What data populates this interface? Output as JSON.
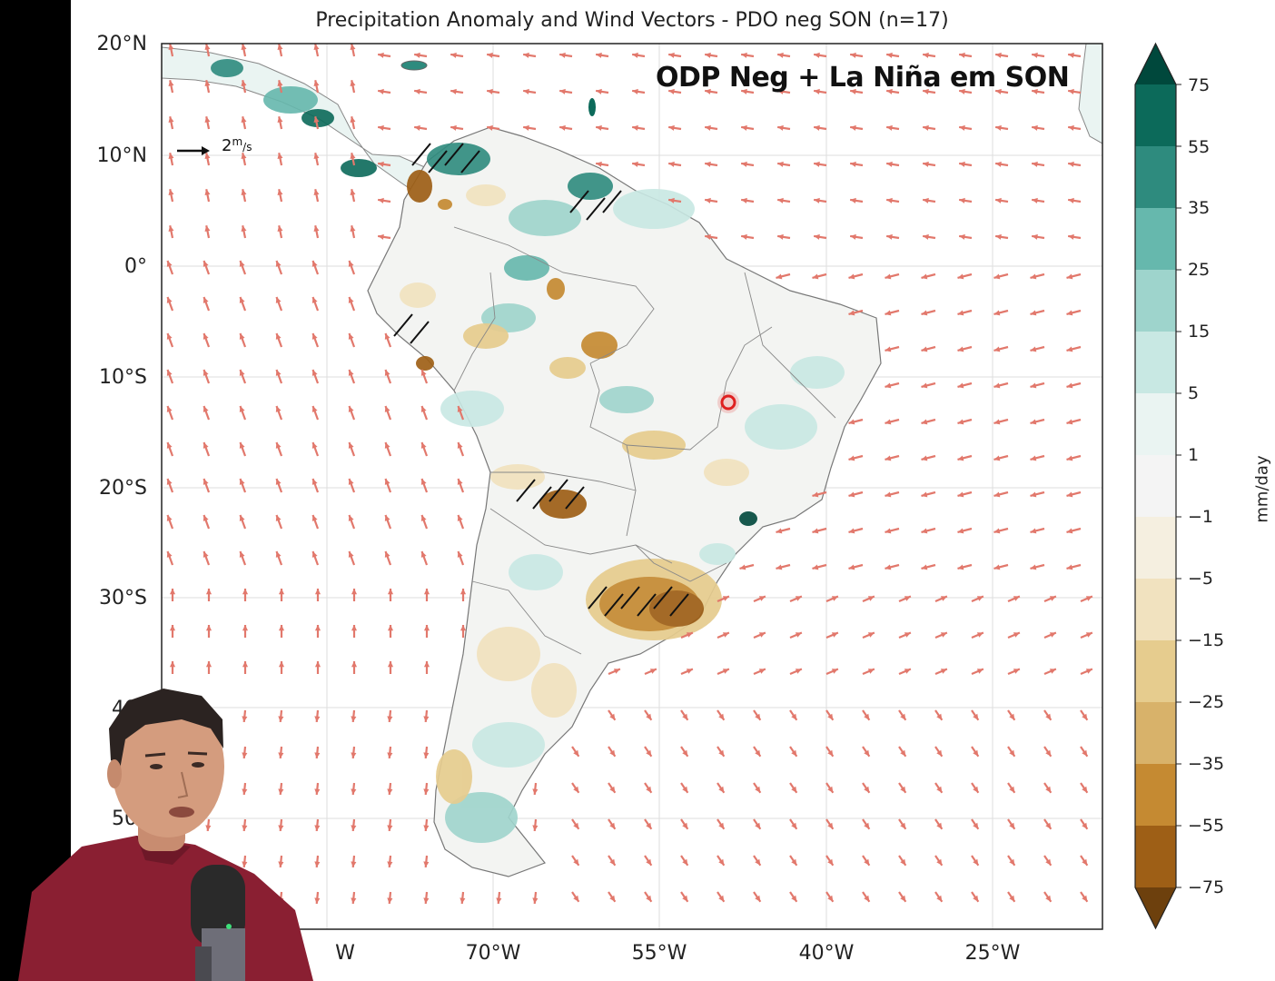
{
  "title": "Precipitation Anomaly and Wind Vectors - PDO neg SON (n=17)",
  "overlay_title": "ODP Neg + La Niña em SON",
  "wind_scale_label": "2",
  "latitude_labels": [
    "20°N",
    "10°N",
    "0°",
    "10°S",
    "20°S",
    "30°S",
    "40°",
    "50°"
  ],
  "longitude_labels": [
    "W",
    "70°W",
    "55°W",
    "40°W",
    "25°W"
  ],
  "colorbar": {
    "unit": "mm/day",
    "tick_labels": [
      "75",
      "55",
      "35",
      "25",
      "15",
      "5",
      "1",
      "−1",
      "−5",
      "−15",
      "−25",
      "−35",
      "−55",
      "−75"
    ],
    "colors": [
      "#00483c",
      "#0c6a5a",
      "#2e8b7e",
      "#66b8ad",
      "#9ed4cc",
      "#c8e8e3",
      "#eaf4f2",
      "#f4f4f4",
      "#f5efe0",
      "#f1e2bf",
      "#e6cc8e",
      "#d8b26a",
      "#c58a32",
      "#9e5f16",
      "#6d400d"
    ]
  },
  "map": {
    "land_color": "#f3f4f2",
    "ocean_color": "#ffffff",
    "wind_arrow_color": "#e2786c",
    "wet_color": "#2e8b7e",
    "dry_color": "#b77e2a"
  },
  "presenter": {
    "shirt_color": "#8a1f32",
    "mic_color": "#2a2a2a"
  }
}
